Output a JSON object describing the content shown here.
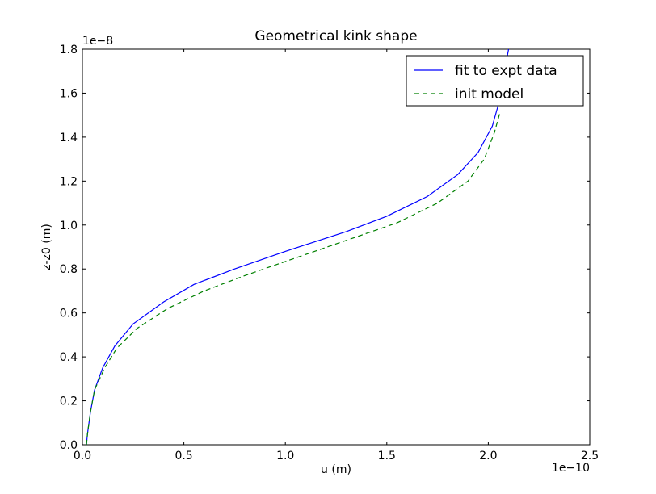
{
  "chart_data": {
    "type": "line",
    "title": "Geometrical kink shape",
    "xlabel": "u (m)",
    "ylabel": "z-z0 (m)",
    "x_offset_label": "1e−10",
    "y_offset_label": "1e−8",
    "xlim": [
      0.0,
      2.5
    ],
    "ylim": [
      0.0,
      1.8
    ],
    "x_ticks": [
      "0.0",
      "0.5",
      "1.0",
      "1.5",
      "2.0",
      "2.5"
    ],
    "y_ticks": [
      "0.0",
      "0.2",
      "0.4",
      "0.6",
      "0.8",
      "1.0",
      "1.2",
      "1.4",
      "1.6",
      "1.8"
    ],
    "grid": false,
    "legend_position": "top-right",
    "series": [
      {
        "name": "fit to expt data",
        "color": "#0000ff",
        "style": "solid",
        "points": [
          [
            0.02,
            0.0
          ],
          [
            0.025,
            0.05
          ],
          [
            0.04,
            0.15
          ],
          [
            0.06,
            0.25
          ],
          [
            0.1,
            0.35
          ],
          [
            0.16,
            0.45
          ],
          [
            0.25,
            0.55
          ],
          [
            0.4,
            0.65
          ],
          [
            0.55,
            0.73
          ],
          [
            0.75,
            0.8
          ],
          [
            1.0,
            0.88
          ],
          [
            1.3,
            0.97
          ],
          [
            1.5,
            1.04
          ],
          [
            1.7,
            1.13
          ],
          [
            1.85,
            1.23
          ],
          [
            1.95,
            1.33
          ],
          [
            2.02,
            1.45
          ],
          [
            2.05,
            1.55
          ],
          [
            2.07,
            1.65
          ],
          [
            2.09,
            1.75
          ],
          [
            2.1,
            1.8
          ]
        ]
      },
      {
        "name": "init model",
        "color": "#008000",
        "style": "dashed",
        "points": [
          [
            0.02,
            0.0
          ],
          [
            0.025,
            0.05
          ],
          [
            0.04,
            0.15
          ],
          [
            0.06,
            0.25
          ],
          [
            0.11,
            0.35
          ],
          [
            0.17,
            0.44
          ],
          [
            0.27,
            0.53
          ],
          [
            0.42,
            0.62
          ],
          [
            0.6,
            0.7
          ],
          [
            0.8,
            0.77
          ],
          [
            1.05,
            0.85
          ],
          [
            1.3,
            0.93
          ],
          [
            1.55,
            1.01
          ],
          [
            1.75,
            1.1
          ],
          [
            1.9,
            1.2
          ],
          [
            1.98,
            1.3
          ],
          [
            2.03,
            1.42
          ],
          [
            2.06,
            1.52
          ]
        ]
      }
    ]
  }
}
